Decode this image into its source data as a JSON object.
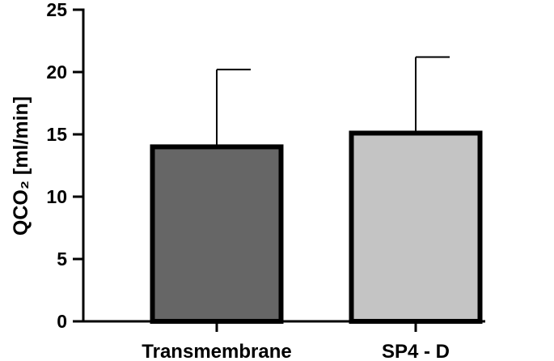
{
  "chart_data": {
    "type": "bar",
    "categories": [
      "Transmembrane",
      "SP4 - D"
    ],
    "values": [
      14.0,
      15.1
    ],
    "error_upper": [
      20.2,
      21.2
    ],
    "colors": [
      "#666666",
      "#c4c4c4"
    ],
    "ylabel": "QCO₂ [ml/min]",
    "ylim": [
      0,
      25
    ],
    "yticks": [
      "0",
      "5",
      "10",
      "15",
      "20",
      "25"
    ],
    "grid": false
  }
}
